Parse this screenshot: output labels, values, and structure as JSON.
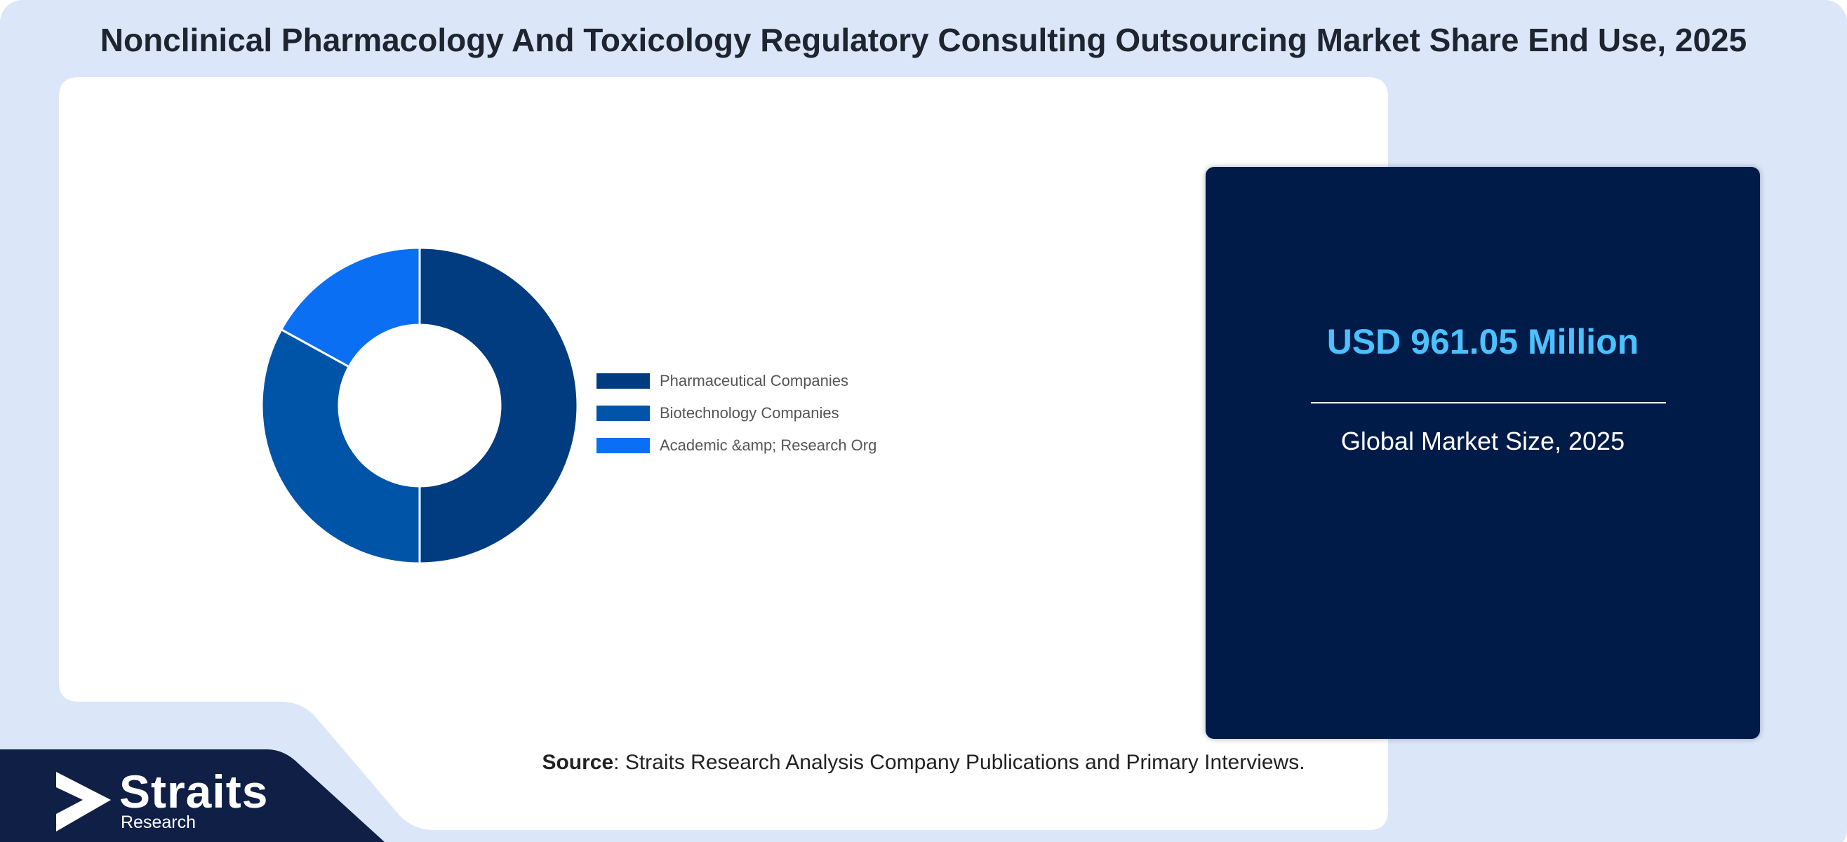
{
  "header": {
    "title": "Nonclinical Pharmacology And Toxicology Regulatory Consulting Outsourcing Market Share End Use, 2025"
  },
  "chart_data": {
    "type": "pie",
    "title": "",
    "donut": true,
    "categories": [
      "Pharmaceutical Companies",
      "Biotechnology Companies",
      "Academic &amp; Research Org"
    ],
    "values": [
      50,
      33,
      17
    ],
    "colors": [
      "#003c7f",
      "#0054a8",
      "#0a6ff2"
    ],
    "legend_position": "right"
  },
  "stat_card": {
    "value": "USD 961.05 Million",
    "caption": "Global Market Size, 2025"
  },
  "source": {
    "label": "Source",
    "text": ": Straits Research Analysis Company Publications and Primary Interviews."
  },
  "logo": {
    "name": "Straits",
    "subtext": "Research",
    "icon": "straits-arrow-icon"
  },
  "colors": {
    "background": "#dbe7f8",
    "card": "#001b47",
    "accent": "#4cc1ff",
    "logo_band": "#0f1f45"
  }
}
